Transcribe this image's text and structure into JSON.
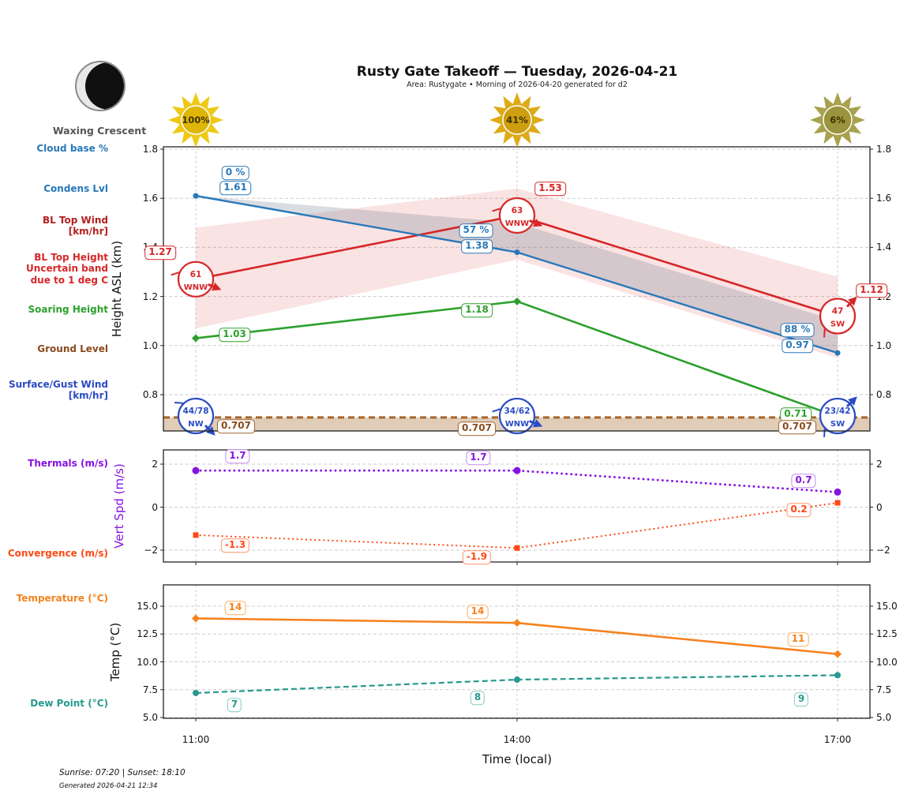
{
  "header": {
    "title": "Rusty Gate Takeoff — Tuesday, 2026-04-21",
    "subtitle": "Area: Rustygate • Morning of 2026-04-20 generated for d2"
  },
  "moon": {
    "phase_label": "Waxing Crescent"
  },
  "suns": [
    {
      "time": "11:00",
      "percent": "100%",
      "petal": "#eec916",
      "center": "#dfb607"
    },
    {
      "time": "14:00",
      "percent": "41%",
      "petal": "#ddab18",
      "center": "#cf9e10"
    },
    {
      "time": "17:00",
      "percent": "6%",
      "petal": "#a8a14d",
      "center": "#9a943e"
    }
  ],
  "footer": {
    "sun_times": "Sunrise: 07:20 | Sunset: 18:10",
    "generated": "Generated 2026-04-21 12:34"
  },
  "xlabel": "Time (local)",
  "times": [
    "11:00",
    "14:00",
    "17:00"
  ],
  "sidebar": [
    {
      "label": "Cloud base %",
      "color": "#2878b8"
    },
    {
      "label": "Condens Lvl",
      "color": "#2878b8"
    },
    {
      "label": "BL Top Wind\n[km/hr]",
      "color": "#b42020"
    },
    {
      "label": "BL Top Height\nUncertain band\ndue to 1 deg C",
      "color": "#d62728"
    },
    {
      "label": "Soaring Height",
      "color": "#2ca02c"
    },
    {
      "label": "Ground Level",
      "color": "#8a4a1d"
    },
    {
      "label": "Surface/Gust Wind\n[km/hr]",
      "color": "#2a4bc4"
    },
    {
      "label": "Thermals (m/s)",
      "color": "#8712e2"
    },
    {
      "label": "Convergence (m/s)",
      "color": "#ff4814"
    },
    {
      "label": "Temperature (°C)",
      "color": "#f5821e"
    },
    {
      "label": "Dew Point (°C)",
      "color": "#27998e"
    }
  ],
  "colors": {
    "blue": "#2878b8",
    "royal_blue": "#2a4bc4",
    "red": "#d62728",
    "green": "#2ca02c",
    "brown": "#a5652d",
    "brown_dark": "#8a4a1d",
    "purple": "#8712e2",
    "purple_lt": "#c28df0",
    "orangered": "#ff4814",
    "orangered_lt": "#ff9468",
    "orange": "#f5821e",
    "orange_lt": "#fbaf62",
    "teal": "#27998e",
    "teal_lt": "#7fccc3",
    "band_red": "rgba(214,39,40,0.13)",
    "band_gray": "rgba(120,130,145,0.28)",
    "band_ground": "rgba(167,108,50,0.35)",
    "grid": "#cccccc",
    "frame": "#222222",
    "sun_text": "#3f3200",
    "moon_body": "#101010",
    "moon_lit": "#e8e8e8",
    "moon_ring": "#8a8a8a"
  },
  "chart_data": [
    {
      "id": "height",
      "type": "line",
      "ylabel": "Height ASL (km)",
      "x": [
        "11:00",
        "14:00",
        "17:00"
      ],
      "ylim": [
        0.65,
        1.81
      ],
      "yticks": [
        {
          "v": 1.8,
          "t": "1.8"
        },
        {
          "v": 1.6,
          "t": "1.6"
        },
        {
          "v": 1.4,
          "t": "1.4"
        },
        {
          "v": 1.2,
          "t": "1.2"
        },
        {
          "v": 1.0,
          "t": "1.0"
        },
        {
          "v": 0.8,
          "t": "0.8"
        }
      ],
      "series": [
        {
          "key": "cloud_base_pct",
          "name": "Cloud base %",
          "labels": [
            "0 %",
            "57 %",
            "88 %"
          ]
        },
        {
          "key": "condens_lvl",
          "name": "Condens Lvl",
          "values": [
            1.61,
            1.38,
            0.97
          ],
          "labels": [
            "1.61",
            "1.38",
            "0.97"
          ],
          "band_upper": [
            1.61,
            1.5,
            1.1
          ]
        },
        {
          "key": "bl_top_wind",
          "name": "BL Top Wind [km/hr]",
          "winds": [
            {
              "speed": "61",
              "dir": "WNW"
            },
            {
              "speed": "63",
              "dir": "WNW"
            },
            {
              "speed": "47",
              "dir": "SW"
            }
          ]
        },
        {
          "key": "bl_top_height",
          "name": "BL Top Height Uncertain band due to 1 deg C",
          "values": [
            1.27,
            1.53,
            1.12
          ],
          "labels": [
            "1.27",
            "1.53",
            "1.12"
          ],
          "band_upper": [
            1.48,
            1.64,
            1.28
          ],
          "band_lower": [
            1.07,
            1.35,
            0.95
          ]
        },
        {
          "key": "soaring_height",
          "name": "Soaring Height",
          "values": [
            1.03,
            1.18,
            0.71
          ],
          "labels": [
            "1.03",
            "1.18",
            "0.71"
          ]
        },
        {
          "key": "ground_level",
          "name": "Ground Level",
          "values": [
            0.707,
            0.707,
            0.707
          ],
          "labels": [
            "0.707",
            "0.707",
            "0.707"
          ]
        },
        {
          "key": "surface_gust_wind",
          "name": "Surface/Gust Wind [km/hr]",
          "winds": [
            {
              "speed": "44/78",
              "dir": "NW"
            },
            {
              "speed": "34/62",
              "dir": "WNW"
            },
            {
              "speed": "23/42",
              "dir": "SW"
            }
          ]
        }
      ]
    },
    {
      "id": "vert_speed",
      "type": "line",
      "ylabel": "Vert Spd (m/s)",
      "x": [
        "11:00",
        "14:00",
        "17:00"
      ],
      "ylim": [
        -2.6,
        2.6
      ],
      "yticks": [
        {
          "v": 2,
          "t": "2"
        },
        {
          "v": 0,
          "t": "0"
        },
        {
          "v": -2,
          "t": "−2"
        }
      ],
      "series": [
        {
          "key": "thermals",
          "name": "Thermals (m/s)",
          "values": [
            1.7,
            1.7,
            0.7
          ],
          "labels": [
            "1.7",
            "1.7",
            "0.7"
          ]
        },
        {
          "key": "convergence",
          "name": "Convergence (m/s)",
          "values": [
            -1.3,
            -1.9,
            0.2
          ],
          "labels": [
            "-1.3",
            "-1.9",
            "0.2"
          ]
        }
      ]
    },
    {
      "id": "temperature",
      "type": "line",
      "ylabel": "Temp (°C)",
      "x": [
        "11:00",
        "14:00",
        "17:00"
      ],
      "ylim": [
        4.9,
        16.8
      ],
      "yticks": [
        {
          "v": 15,
          "t": "15.0"
        },
        {
          "v": 12.5,
          "t": "12.5"
        },
        {
          "v": 10,
          "t": "10.0"
        },
        {
          "v": 7.5,
          "t": "7.5"
        },
        {
          "v": 5,
          "t": "5.0"
        }
      ],
      "series": [
        {
          "key": "temperature",
          "name": "Temperature (°C)",
          "values": [
            13.9,
            13.5,
            10.7
          ],
          "labels": [
            "14",
            "14",
            "11"
          ]
        },
        {
          "key": "dew_point",
          "name": "Dew Point (°C)",
          "values": [
            7.2,
            8.4,
            8.8
          ],
          "labels": [
            "7",
            "8",
            "9"
          ]
        }
      ]
    }
  ]
}
